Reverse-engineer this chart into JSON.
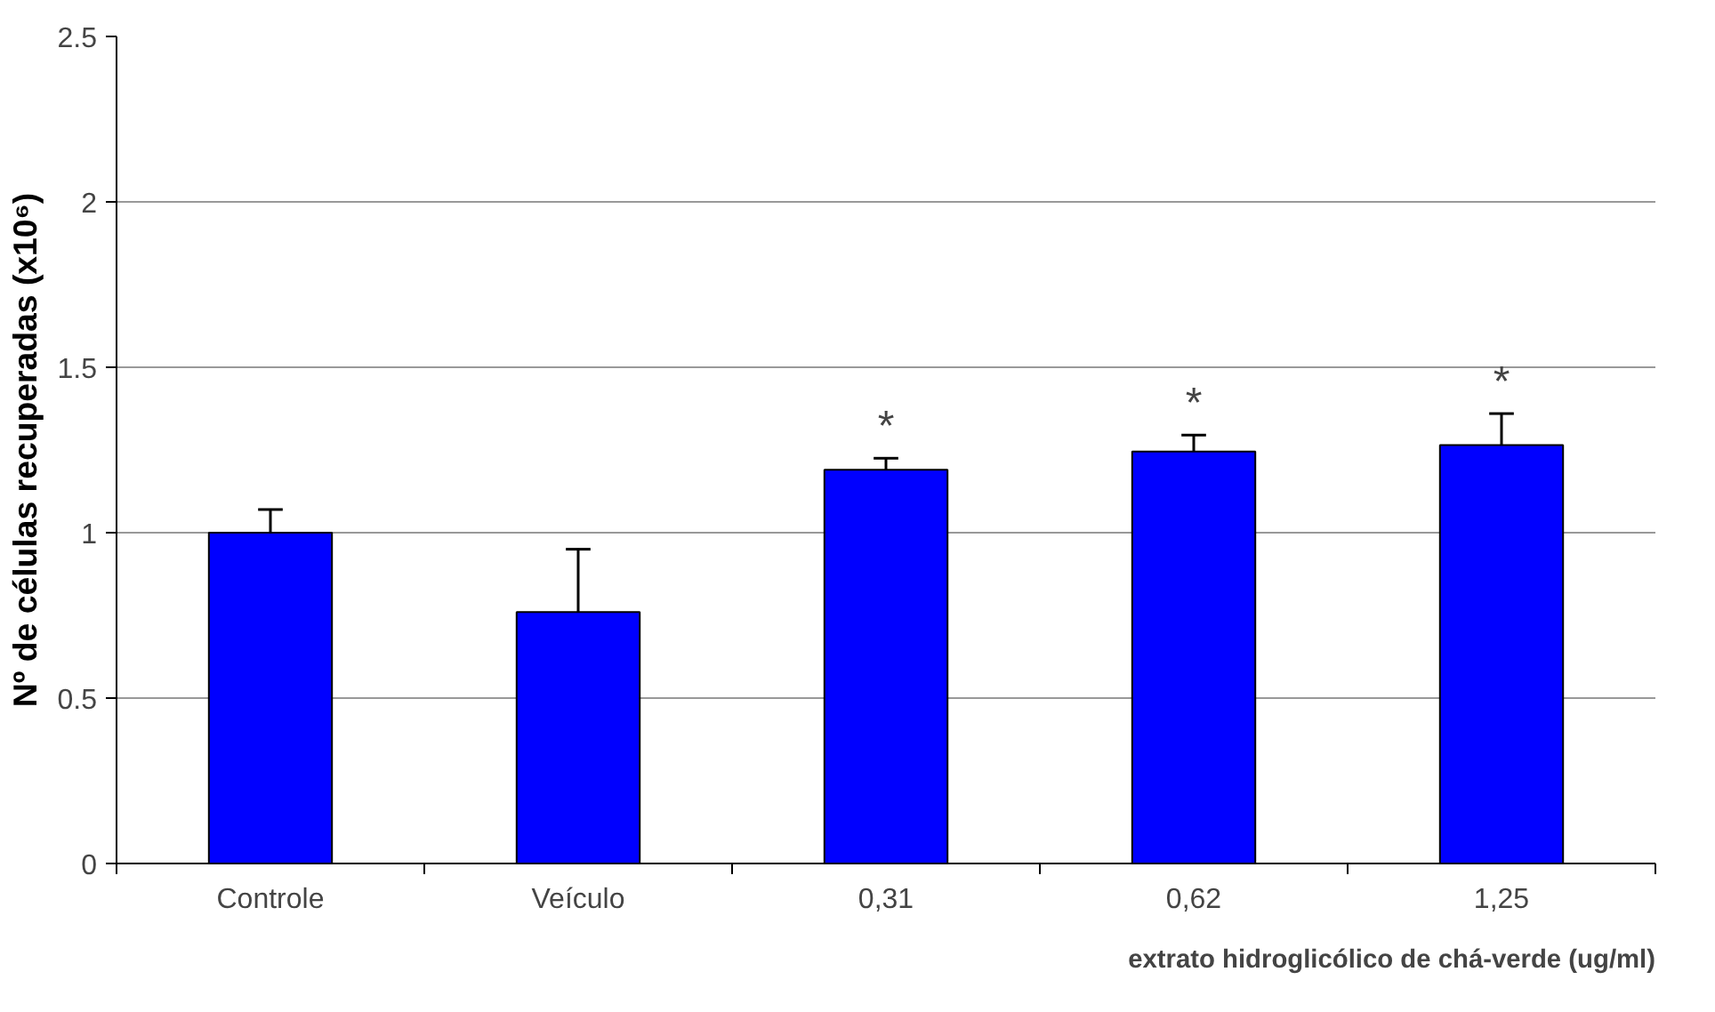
{
  "chart_data": {
    "type": "bar",
    "xlabel": "extrato hidroglicólico de chá-verde (ug/ml)",
    "ylabel": "Nº de células recuperadas (x10⁶)",
    "categories": [
      "Controle",
      "Veículo",
      "0,31",
      "0,62",
      "1,25"
    ],
    "values": [
      1.0,
      0.76,
      1.19,
      1.245,
      1.265
    ],
    "errors": [
      [
        1.0,
        1.07
      ],
      [
        0.76,
        0.95
      ],
      [
        1.19,
        1.225
      ],
      [
        1.245,
        1.295
      ],
      [
        1.265,
        1.36
      ]
    ],
    "color": "#0000ff",
    "ylim": [
      0,
      2.5
    ],
    "yticks": [
      0,
      {
        "value": 0.5,
        "label": "0.5"
      },
      1,
      {
        "value": 1.5,
        "label": "1.5"
      },
      2,
      {
        "value": 2.5,
        "label": "2.5"
      }
    ],
    "grid": "y",
    "annotations": [
      "*",
      "*",
      "*"
    ]
  }
}
